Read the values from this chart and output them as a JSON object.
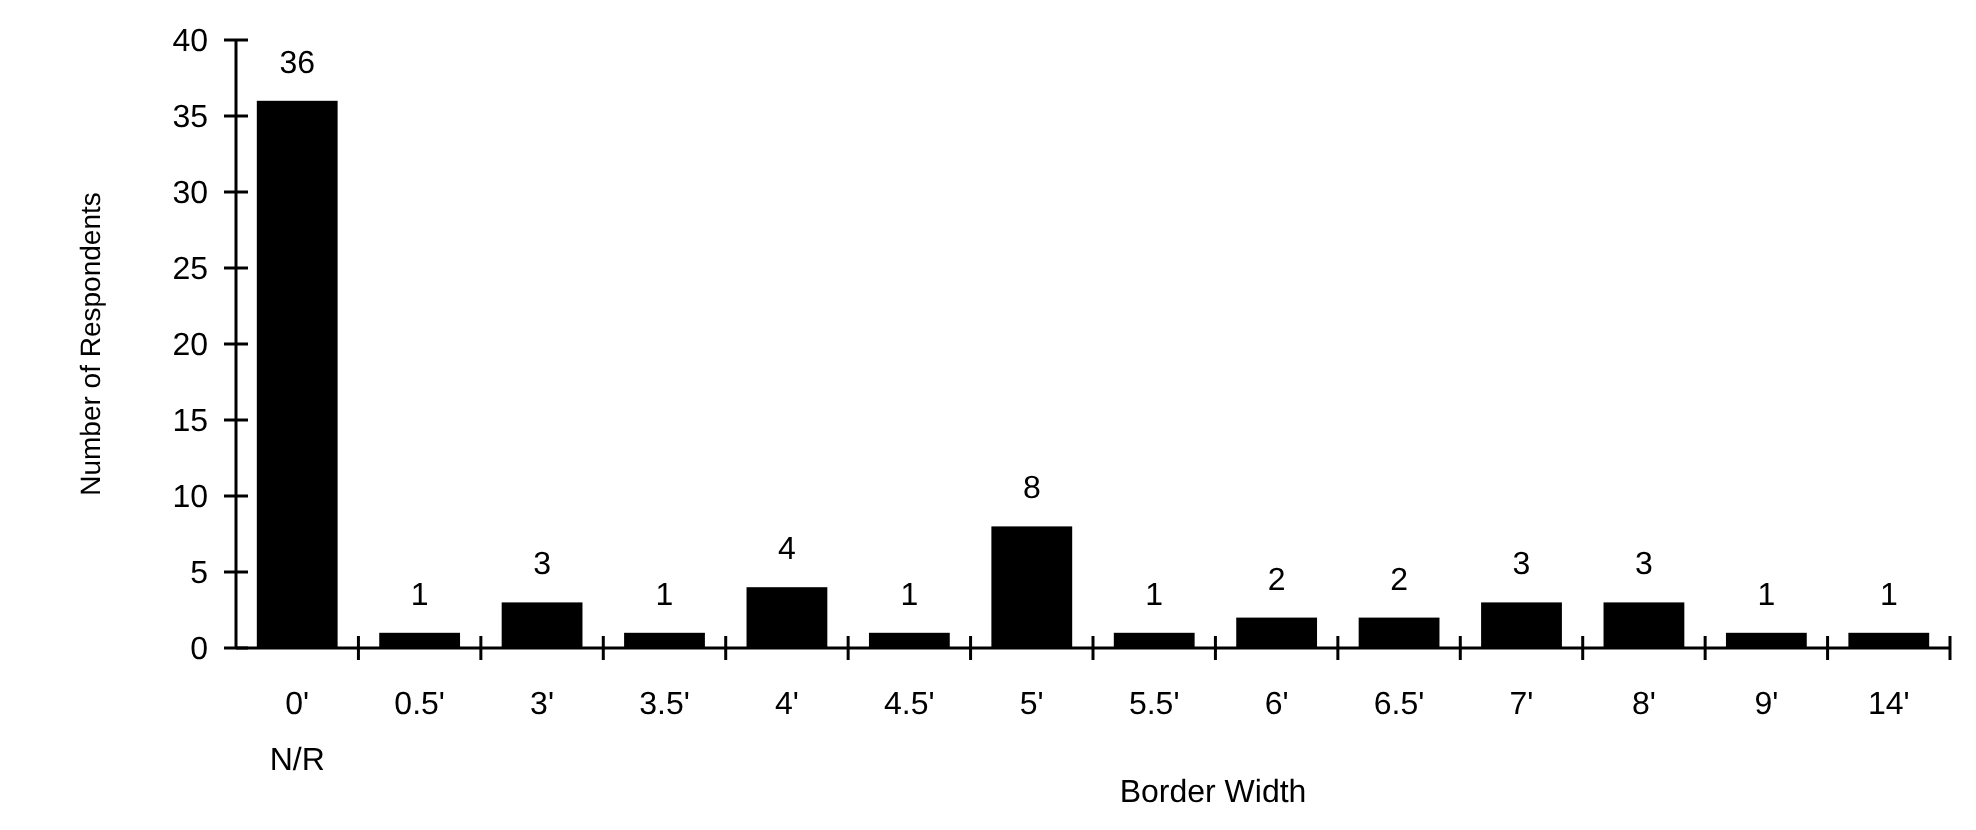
{
  "chart_data": {
    "type": "bar",
    "xlabel": "Border Width",
    "ylabel": "Number of Respondents",
    "categories": [
      "0'\nN/R",
      "0.5'",
      "3'",
      "3.5'",
      "4'",
      "4.5'",
      "5'",
      "5.5'",
      "6'",
      "6.5'",
      "7'",
      "8'",
      "9'",
      "14'"
    ],
    "values": [
      36,
      1,
      3,
      1,
      4,
      1,
      8,
      1,
      2,
      2,
      3,
      3,
      1,
      1
    ],
    "color": "#000000",
    "ylim": [
      0,
      40
    ],
    "yticks": [
      0,
      5,
      10,
      15,
      20,
      25,
      30,
      35,
      40
    ],
    "data_labels": true,
    "grid": false
  }
}
